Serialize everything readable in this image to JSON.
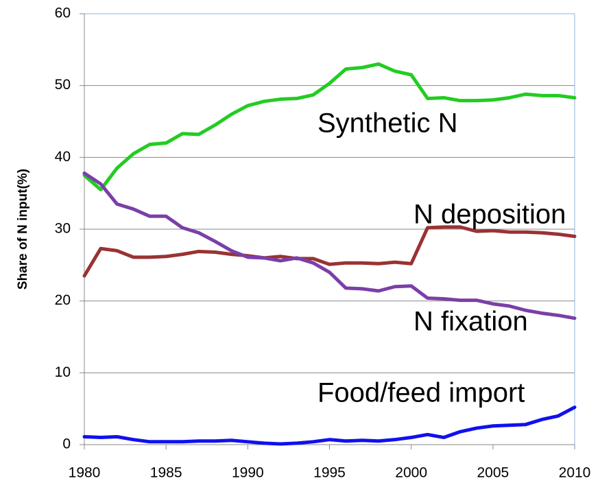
{
  "chart_data": {
    "type": "line",
    "y_label": "Share of N input(%)",
    "x": [
      1980,
      1981,
      1982,
      1983,
      1984,
      1985,
      1986,
      1987,
      1988,
      1989,
      1990,
      1991,
      1992,
      1993,
      1994,
      1995,
      1996,
      1997,
      1998,
      1999,
      2000,
      2001,
      2002,
      2003,
      2004,
      2005,
      2006,
      2007,
      2008,
      2009,
      2010
    ],
    "xlim": [
      1980,
      2010
    ],
    "xticks": [
      1980,
      1985,
      1990,
      1995,
      2000,
      2005,
      2010
    ],
    "ylim": [
      0,
      60
    ],
    "yticks": [
      0,
      10,
      20,
      30,
      40,
      50,
      60
    ],
    "grid": true,
    "series": [
      {
        "name": "Synthetic N",
        "color": "#22cc22",
        "values": [
          37.5,
          35.5,
          38.5,
          40.5,
          41.8,
          42,
          43.3,
          43.2,
          44.5,
          46,
          47.2,
          47.8,
          48.1,
          48.2,
          48.7,
          50.3,
          52.3,
          52.5,
          53,
          52,
          51.5,
          48.2,
          48.3,
          47.9,
          47.9,
          48,
          48.3,
          48.8,
          48.6,
          48.6,
          48.3
        ]
      },
      {
        "name": "N deposition",
        "color": "#993333",
        "values": [
          23.5,
          27.3,
          27,
          26.1,
          26.1,
          26.2,
          26.5,
          26.9,
          26.8,
          26.5,
          26.3,
          26,
          26.2,
          25.9,
          25.9,
          25.1,
          25.3,
          25.3,
          25.2,
          25.4,
          25.2,
          30.2,
          30.3,
          30.3,
          29.7,
          29.8,
          29.6,
          29.6,
          29.5,
          29.3,
          29
        ]
      },
      {
        "name": "N fixation",
        "color": "#7a3fa8",
        "values": [
          37.8,
          36.3,
          33.5,
          32.8,
          31.8,
          31.8,
          30.2,
          29.5,
          28.3,
          27,
          26.1,
          26,
          25.6,
          26,
          25.3,
          24,
          21.8,
          21.7,
          21.4,
          22,
          22.1,
          20.4,
          20.3,
          20.1,
          20.1,
          19.6,
          19.3,
          18.7,
          18.3,
          18,
          17.6
        ]
      },
      {
        "name": "Food/feed import",
        "color": "#1010ee",
        "values": [
          1.1,
          1,
          1.1,
          0.7,
          0.4,
          0.4,
          0.4,
          0.5,
          0.5,
          0.6,
          0.4,
          0.2,
          0.1,
          0.2,
          0.4,
          0.7,
          0.5,
          0.6,
          0.5,
          0.7,
          1,
          1.4,
          1,
          1.8,
          2.3,
          2.6,
          2.7,
          2.8,
          3.5,
          4,
          5.2
        ]
      }
    ]
  }
}
